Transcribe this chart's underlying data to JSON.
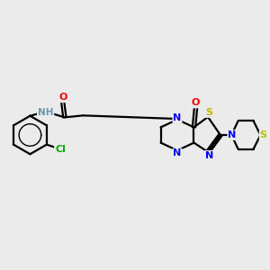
{
  "background_color": "#ebebeb",
  "bond_color": "#000000",
  "figsize": [
    3.0,
    3.0
  ],
  "dpi": 100,
  "atom_colors": {
    "N": "#0000ff",
    "O": "#ff0000",
    "S": "#bbbb00",
    "Cl": "#00aa00",
    "C": "#000000",
    "H": "#6699aa"
  },
  "lw": 1.6,
  "fs": 8.0
}
